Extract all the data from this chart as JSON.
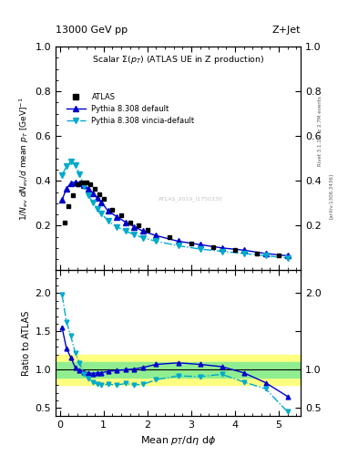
{
  "title_left": "13000 GeV pp",
  "title_right": "Z+Jet",
  "plot_title": "Scalar $\\Sigma(p_T)$ (ATLAS UE in Z production)",
  "right_label1": "Rivet 3.1.10, ≥ 2.7M events",
  "right_label2": "[arXiv:1306.3436]",
  "watermark": "ATLAS_2019_I1750330",
  "xlabel": "Mean $p_T$/d$\\eta$ d$\\phi$",
  "ylabel": "$1/N_{ev}$ $dN_{ev}/d$ mean $p_T$ [GeV]$^{-1}$",
  "ylabel_ratio": "Ratio to ATLAS",
  "atlas_x": [
    0.1,
    0.2,
    0.3,
    0.4,
    0.5,
    0.6,
    0.7,
    0.8,
    0.9,
    1.0,
    1.2,
    1.4,
    1.6,
    1.8,
    2.0,
    2.5,
    3.0,
    3.5,
    4.0,
    4.5,
    5.0
  ],
  "atlas_y": [
    0.215,
    0.285,
    0.335,
    0.385,
    0.395,
    0.395,
    0.385,
    0.365,
    0.34,
    0.32,
    0.27,
    0.245,
    0.215,
    0.2,
    0.18,
    0.15,
    0.12,
    0.105,
    0.09,
    0.075,
    0.065
  ],
  "atlas_yerr": [
    0.008,
    0.008,
    0.008,
    0.008,
    0.008,
    0.008,
    0.008,
    0.008,
    0.008,
    0.008,
    0.008,
    0.008,
    0.008,
    0.008,
    0.008,
    0.008,
    0.005,
    0.005,
    0.005,
    0.005,
    0.005
  ],
  "pythia_default_x": [
    0.05,
    0.15,
    0.25,
    0.35,
    0.45,
    0.55,
    0.65,
    0.75,
    0.85,
    0.95,
    1.1,
    1.3,
    1.5,
    1.7,
    1.9,
    2.2,
    2.7,
    3.2,
    3.7,
    4.2,
    4.7,
    5.2
  ],
  "pythia_default_y": [
    0.315,
    0.365,
    0.39,
    0.395,
    0.39,
    0.38,
    0.365,
    0.345,
    0.325,
    0.305,
    0.265,
    0.24,
    0.215,
    0.195,
    0.175,
    0.155,
    0.13,
    0.115,
    0.1,
    0.09,
    0.075,
    0.065
  ],
  "pythia_vincia_x": [
    0.05,
    0.15,
    0.25,
    0.35,
    0.45,
    0.55,
    0.65,
    0.75,
    0.85,
    0.95,
    1.1,
    1.3,
    1.5,
    1.7,
    1.9,
    2.2,
    2.7,
    3.2,
    3.7,
    4.2,
    4.7,
    5.2
  ],
  "pythia_vincia_y": [
    0.425,
    0.465,
    0.485,
    0.47,
    0.43,
    0.375,
    0.335,
    0.305,
    0.275,
    0.255,
    0.22,
    0.195,
    0.175,
    0.16,
    0.145,
    0.13,
    0.11,
    0.095,
    0.085,
    0.075,
    0.065,
    0.055
  ],
  "ratio_default_x": [
    0.05,
    0.15,
    0.25,
    0.35,
    0.45,
    0.55,
    0.65,
    0.75,
    0.85,
    0.95,
    1.1,
    1.3,
    1.5,
    1.7,
    1.9,
    2.2,
    2.7,
    3.2,
    3.7,
    4.2,
    4.7,
    5.2
  ],
  "ratio_default_y": [
    1.55,
    1.28,
    1.16,
    1.03,
    0.99,
    0.97,
    0.96,
    0.95,
    0.96,
    0.96,
    0.98,
    0.99,
    1.0,
    1.01,
    1.03,
    1.07,
    1.09,
    1.07,
    1.04,
    0.96,
    0.83,
    0.65
  ],
  "ratio_vincia_x": [
    0.05,
    0.15,
    0.25,
    0.35,
    0.45,
    0.55,
    0.65,
    0.75,
    0.85,
    0.95,
    1.1,
    1.3,
    1.5,
    1.7,
    1.9,
    2.2,
    2.7,
    3.2,
    3.7,
    4.2,
    4.7,
    5.2
  ],
  "ratio_vincia_y": [
    1.98,
    1.63,
    1.44,
    1.22,
    1.09,
    0.95,
    0.88,
    0.84,
    0.81,
    0.8,
    0.81,
    0.8,
    0.82,
    0.8,
    0.81,
    0.87,
    0.92,
    0.91,
    0.94,
    0.84,
    0.75,
    0.45
  ],
  "band_green_low": 0.9,
  "band_green_high": 1.1,
  "band_yellow_low": 0.8,
  "band_yellow_high": 1.2,
  "color_atlas": "#000000",
  "color_pythia_default": "#0000cc",
  "color_pythia_vincia": "#00aacc",
  "color_green_band": "#90ee90",
  "color_yellow_band": "#ffff80",
  "xlim": [
    -0.1,
    5.5
  ],
  "ylim_main": [
    0.0,
    1.0
  ],
  "ylim_ratio": [
    0.4,
    2.3
  ],
  "yticks_main": [
    0.2,
    0.4,
    0.6,
    0.8,
    1.0
  ],
  "yticks_ratio": [
    0.5,
    1.0,
    1.5,
    2.0
  ],
  "xticks": [
    0,
    1,
    2,
    3,
    4,
    5
  ]
}
